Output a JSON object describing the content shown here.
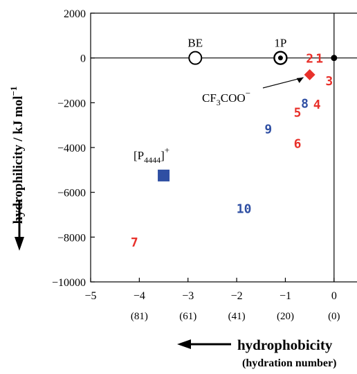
{
  "chart_data": {
    "type": "scatter",
    "xlabel": "hydrophobicity",
    "xlabel_sub": "(hydration number)",
    "ylabel": "hydrophilicity / kJ mol",
    "ylabel_sup": "−1",
    "xlim": [
      -5,
      0.5
    ],
    "ylim": [
      -10000,
      2000
    ],
    "x_ticks": [
      -5,
      -4,
      -3,
      -2,
      -1,
      0
    ],
    "x_tick_labels": [
      "−5",
      "−4",
      "−3",
      "−2",
      "−1",
      "0"
    ],
    "x_sub_ticks": [
      -4,
      -3,
      -2,
      -1,
      0
    ],
    "x_sub_tick_labels": [
      "(81)",
      "(61)",
      "(41)",
      "(20)",
      "(0)"
    ],
    "y_ticks": [
      2000,
      0,
      -2000,
      -4000,
      -6000,
      -8000,
      -10000
    ],
    "y_tick_labels": [
      "2000",
      "0",
      "−2000",
      "−4000",
      "−6000",
      "−8000",
      "−10000"
    ],
    "reference_lines": {
      "x": 0,
      "y": 0
    },
    "colors": {
      "red": "#e8312b",
      "blue": "#2f4fa3",
      "black": "#000000"
    },
    "points": [
      {
        "label": "1",
        "x": -0.3,
        "y": 0,
        "color": "#e8312b",
        "marker": "number"
      },
      {
        "label": "2",
        "x": -0.5,
        "y": 0,
        "color": "#e8312b",
        "marker": "number"
      },
      {
        "label": "3",
        "x": -0.1,
        "y": -1000,
        "color": "#e8312b",
        "marker": "number"
      },
      {
        "label": "4",
        "x": -0.35,
        "y": -2050,
        "color": "#e8312b",
        "marker": "number"
      },
      {
        "label": "5",
        "x": -0.75,
        "y": -2400,
        "color": "#e8312b",
        "marker": "number"
      },
      {
        "label": "6",
        "x": -0.75,
        "y": -3800,
        "color": "#e8312b",
        "marker": "number"
      },
      {
        "label": "7",
        "x": -4.1,
        "y": -8200,
        "color": "#e8312b",
        "marker": "number"
      },
      {
        "label": "8",
        "x": -0.6,
        "y": -2000,
        "color": "#2f4fa3",
        "marker": "number"
      },
      {
        "label": "9",
        "x": -1.35,
        "y": -3150,
        "color": "#2f4fa3",
        "marker": "number"
      },
      {
        "label": "10",
        "x": -1.85,
        "y": -6700,
        "color": "#2f4fa3",
        "marker": "number"
      }
    ],
    "references": [
      {
        "label": "BE",
        "x": -2.85,
        "y": 0,
        "marker": "open-circle"
      },
      {
        "label": "1P",
        "x": -1.1,
        "y": 0,
        "marker": "bullseye-circle"
      },
      {
        "label": "",
        "x": 0,
        "y": 0,
        "marker": "small-dot"
      }
    ],
    "anions": [
      {
        "label_main": "CF",
        "label_sub": "3",
        "label_mid": "COO",
        "label_sup": "−",
        "x": -0.5,
        "y": -750,
        "color": "#e8312b",
        "marker": "diamond"
      }
    ],
    "cations": [
      {
        "label_main": "[P",
        "label_sub": "4444",
        "label_end": "]",
        "label_sup": "+",
        "x": -3.5,
        "y": -5250,
        "color": "#2f4fa3",
        "marker": "square"
      }
    ]
  }
}
